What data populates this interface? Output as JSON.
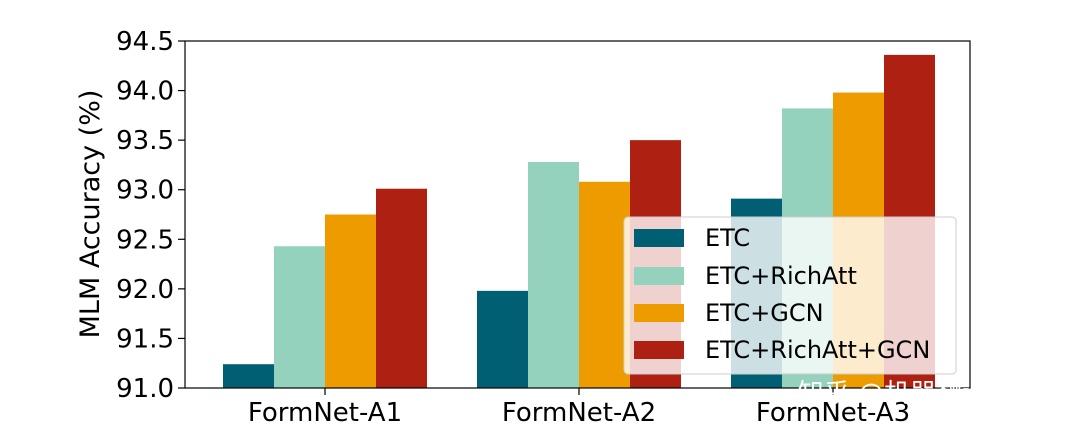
{
  "chart_data": {
    "type": "bar",
    "title": "",
    "xlabel": "",
    "ylabel": "MLM Accuracy (%)",
    "ylim": [
      91.0,
      94.5
    ],
    "yticks": [
      "91.0",
      "91.5",
      "92.0",
      "92.5",
      "93.0",
      "93.5",
      "94.0",
      "94.5"
    ],
    "categories": [
      "FormNet-A1",
      "FormNet-A2",
      "FormNet-A3"
    ],
    "series": [
      {
        "name": "ETC",
        "color": "#005f73",
        "values": [
          91.24,
          91.98,
          92.91
        ]
      },
      {
        "name": "ETC+RichAtt",
        "color": "#94d2bd",
        "values": [
          92.43,
          93.28,
          93.82
        ]
      },
      {
        "name": "ETC+GCN",
        "color": "#ee9b00",
        "values": [
          92.75,
          93.08,
          93.98
        ]
      },
      {
        "name": "ETC+RichAtt+GCN",
        "color": "#ae2012",
        "values": [
          93.01,
          93.5,
          94.36
        ]
      }
    ],
    "legend": {
      "position": "lower-right"
    },
    "grid": false
  },
  "watermark": {
    "text": "知乎 @机器翻译学堂"
  }
}
